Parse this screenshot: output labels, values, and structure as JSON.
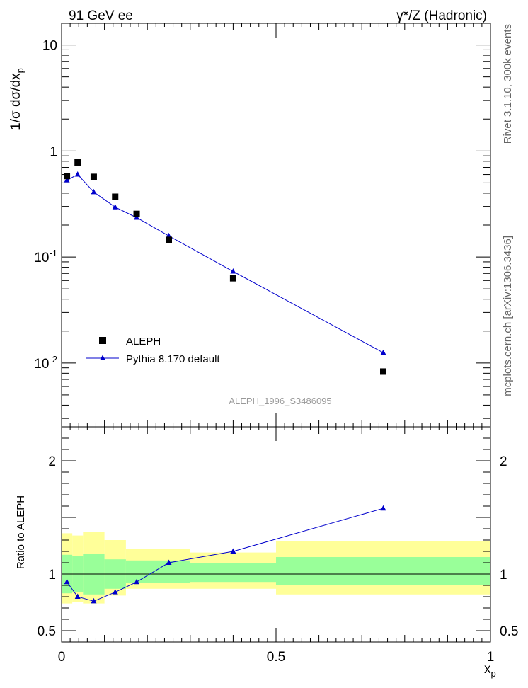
{
  "header": {
    "left": "91 GeV ee",
    "right": "γ*/Z (Hadronic)"
  },
  "side_labels": {
    "rivet": "Rivet 3.1.10,  300k events",
    "mcplots": "mcplots.cern.ch [arXiv:1306.3436]"
  },
  "watermark": "ALEPH_1996_S3486095",
  "colors": {
    "data": "#000000",
    "mc": "#0000cc",
    "band_inner": "#99ff99",
    "band_outer": "#ffff99"
  },
  "chart_data": [
    {
      "type": "scatter",
      "panel": "main",
      "ylabel": "1/σ dσ/dx_p",
      "yscale": "log",
      "xlim": [
        0,
        1
      ],
      "ylim": [
        0.0025,
        16
      ],
      "ytick_labels": [
        "10",
        "1",
        "10^-1",
        "10^-2"
      ],
      "legend": {
        "placement": "lower-left"
      },
      "series": [
        {
          "name": "ALEPH",
          "marker": "square",
          "x": [
            0.0125,
            0.0375,
            0.075,
            0.125,
            0.175,
            0.25,
            0.4,
            0.75
          ],
          "y": [
            0.58,
            0.78,
            0.57,
            0.37,
            0.255,
            0.145,
            0.063,
            0.0083
          ]
        },
        {
          "name": "Pythia 8.170 default",
          "marker": "triangle",
          "x": [
            0.0125,
            0.0375,
            0.075,
            0.125,
            0.175,
            0.25,
            0.4,
            0.75
          ],
          "y": [
            0.53,
            0.6,
            0.41,
            0.295,
            0.235,
            0.158,
            0.073,
            0.0125
          ]
        }
      ]
    },
    {
      "type": "line",
      "panel": "ratio",
      "ylabel": "Ratio to ALEPH",
      "xlabel": "x_p",
      "xlim": [
        0,
        1
      ],
      "ylim": [
        0.4,
        2.3
      ],
      "yticks": [
        0.5,
        1,
        2
      ],
      "ytick_labels": [
        "0.5",
        "1",
        "2"
      ],
      "xticks": [
        0,
        0.5,
        1
      ],
      "xtick_labels": [
        "0",
        "0.5",
        "1"
      ],
      "bands": [
        {
          "xlo": 0,
          "xhi": 0.025,
          "inner": [
            0.83,
            1.17
          ],
          "outer": [
            0.74,
            1.36
          ]
        },
        {
          "xlo": 0.025,
          "xhi": 0.05,
          "inner": [
            0.84,
            1.16
          ],
          "outer": [
            0.75,
            1.34
          ]
        },
        {
          "xlo": 0.05,
          "xhi": 0.1,
          "inner": [
            0.82,
            1.18
          ],
          "outer": [
            0.74,
            1.37
          ]
        },
        {
          "xlo": 0.1,
          "xhi": 0.15,
          "inner": [
            0.87,
            1.13
          ],
          "outer": [
            0.81,
            1.3
          ]
        },
        {
          "xlo": 0.15,
          "xhi": 0.3,
          "inner": [
            0.92,
            1.12
          ],
          "outer": [
            0.87,
            1.22
          ]
        },
        {
          "xlo": 0.3,
          "xhi": 0.5,
          "inner": [
            0.93,
            1.1
          ],
          "outer": [
            0.87,
            1.19
          ]
        },
        {
          "xlo": 0.5,
          "xhi": 1.0,
          "inner": [
            0.9,
            1.15
          ],
          "outer": [
            0.82,
            1.29
          ]
        }
      ],
      "series": [
        {
          "name": "Pythia 8.170 default",
          "marker": "triangle",
          "x": [
            0.0125,
            0.0375,
            0.075,
            0.125,
            0.175,
            0.25,
            0.4,
            0.75
          ],
          "y": [
            0.93,
            0.8,
            0.76,
            0.84,
            0.93,
            1.1,
            1.2,
            1.58
          ]
        }
      ]
    }
  ]
}
